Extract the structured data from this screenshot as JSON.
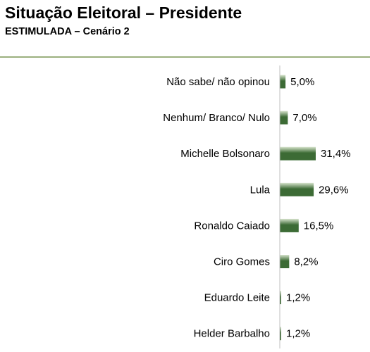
{
  "header": {
    "title": "Situação Eleitoral – Presidente",
    "subtitle": "ESTIMULADA – Cenário 2"
  },
  "colors": {
    "bar_dark": "#3c6b35",
    "bar_light": "#d6e3cc",
    "rule": "#9bb07e",
    "axis": "#bfbfbf"
  },
  "chart_data": {
    "type": "bar",
    "orientation": "horizontal",
    "categories": [
      "Não sabe/ não opinou",
      "Nenhum/ Branco/ Nulo",
      "Michelle Bolsonaro",
      "Lula",
      "Ronaldo Caiado",
      "Ciro Gomes",
      "Eduardo Leite",
      "Helder Barbalho"
    ],
    "values": [
      5.0,
      7.0,
      31.4,
      29.6,
      16.5,
      8.2,
      1.2,
      1.2
    ],
    "value_labels": [
      "5,0%",
      "7,0%",
      "31,4%",
      "29,6%",
      "16,5%",
      "8,2%",
      "1,2%",
      "1,2%"
    ],
    "xlim": [
      0,
      31.4
    ],
    "grid": false,
    "legend": "none"
  }
}
